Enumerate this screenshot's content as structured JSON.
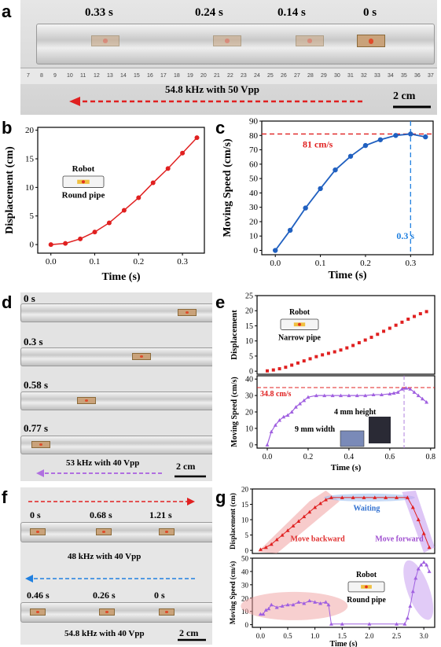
{
  "panel_letters": {
    "a": "a",
    "b": "b",
    "c": "c",
    "d": "d",
    "e": "e",
    "f": "f",
    "g": "g"
  },
  "panel_a": {
    "times": [
      "0.33 s",
      "0.24 s",
      "0.14 s",
      "0 s"
    ],
    "caption": "54.8 kHz with 50 Vpp",
    "scale": "2 cm",
    "ruler_ticks": [
      "7",
      "8",
      "9",
      "10",
      "11",
      "12",
      "13",
      "14",
      "15",
      "16",
      "17",
      "18",
      "19",
      "20",
      "21",
      "22",
      "23",
      "24",
      "25",
      "26",
      "27",
      "28",
      "29",
      "30",
      "31",
      "32",
      "33",
      "34",
      "35",
      "36",
      "37"
    ],
    "arrow_color": "#e02020"
  },
  "panel_d": {
    "times": [
      "0 s",
      "0.3 s",
      "0.58 s",
      "0.77 s"
    ],
    "caption": "53 kHz with 40 Vpp",
    "scale": "2 cm",
    "arrow_color": "#b070e0"
  },
  "panel_f": {
    "times_top": [
      "0 s",
      "0.68 s",
      "1.21 s"
    ],
    "caption_top": "48 kHz with 40 Vpp",
    "times_bottom": [
      "0.46 s",
      "0.26 s",
      "0 s"
    ],
    "caption_bottom": "54.8 kHz with 40 Vpp",
    "scale": "2 cm",
    "arrow_top_color": "#e02020",
    "arrow_bottom_color": "#2080e0"
  },
  "chart_data": [
    {
      "id": "b",
      "type": "line",
      "xlabel": "Time (s)",
      "ylabel": "Displacement (cm)",
      "xlim": [
        -0.03,
        0.35
      ],
      "ylim": [
        -1.5,
        20.5
      ],
      "xticks": [
        0.0,
        0.1,
        0.2,
        0.3
      ],
      "xtick_labels": [
        "0.0",
        "0.1",
        "0.2",
        "0.3"
      ],
      "yticks": [
        0,
        5,
        10,
        15,
        20
      ],
      "ytick_labels": [
        "0",
        "5",
        "10",
        "15",
        "20"
      ],
      "x": [
        0.0,
        0.033,
        0.067,
        0.1,
        0.133,
        0.167,
        0.2,
        0.233,
        0.267,
        0.3,
        0.333
      ],
      "y": [
        0,
        0.2,
        1.0,
        2.2,
        3.8,
        6.0,
        8.2,
        10.8,
        13.3,
        16.0,
        18.7
      ],
      "color": "#e02020",
      "inset": {
        "label_top": "Robot",
        "label_bottom": "Round pipe"
      }
    },
    {
      "id": "c",
      "type": "line",
      "xlabel": "Time (s)",
      "ylabel": "Moving Speed (cm/s)",
      "xlim": [
        -0.03,
        0.35
      ],
      "ylim": [
        -3,
        90
      ],
      "xticks": [
        0.0,
        0.1,
        0.2,
        0.3
      ],
      "xtick_labels": [
        "0.0",
        "0.1",
        "0.2",
        "0.3"
      ],
      "yticks": [
        0,
        10,
        20,
        30,
        40,
        50,
        60,
        70,
        80,
        90
      ],
      "ytick_labels": [
        "0",
        "10",
        "20",
        "30",
        "40",
        "50",
        "60",
        "70",
        "80",
        "90"
      ],
      "x": [
        0.0,
        0.033,
        0.067,
        0.1,
        0.133,
        0.167,
        0.2,
        0.233,
        0.267,
        0.3,
        0.333
      ],
      "y": [
        0,
        14,
        29.5,
        43,
        56,
        65.5,
        73,
        77,
        80,
        81,
        79
      ],
      "color": "#2060c0",
      "hline": {
        "y": 81,
        "label": "81 cm/s",
        "color": "#e02020"
      },
      "vline": {
        "x": 0.3,
        "label": "0.3 s",
        "color": "#2080e0"
      }
    },
    {
      "id": "e_top",
      "type": "scatter",
      "ylabel": "Displacement",
      "xlim": [
        -0.05,
        0.82
      ],
      "ylim": [
        -1,
        25
      ],
      "yticks": [
        0,
        5,
        10,
        15,
        20,
        25
      ],
      "ytick_labels": [
        "0",
        "5",
        "10",
        "15",
        "20",
        "25"
      ],
      "x": [
        0.0,
        0.03,
        0.06,
        0.09,
        0.12,
        0.15,
        0.18,
        0.21,
        0.24,
        0.27,
        0.3,
        0.33,
        0.36,
        0.39,
        0.42,
        0.45,
        0.48,
        0.51,
        0.54,
        0.57,
        0.6,
        0.63,
        0.66,
        0.69,
        0.72,
        0.75,
        0.78
      ],
      "y": [
        0.1,
        0.4,
        0.8,
        1.3,
        2.0,
        2.7,
        3.4,
        4.1,
        4.8,
        5.4,
        5.9,
        6.4,
        7.0,
        7.7,
        8.5,
        9.4,
        10.3,
        11.2,
        12.2,
        13.2,
        14.2,
        15.2,
        16.2,
        17.2,
        18.1,
        19.0,
        19.7
      ],
      "color": "#e02020",
      "inset": {
        "label_top": "Robot",
        "label_bottom": "Narrow pipe"
      }
    },
    {
      "id": "e_bottom",
      "type": "line",
      "xlabel": "Time (s)",
      "ylabel": "Moving Speed (cm/s)",
      "xlim": [
        -0.05,
        0.82
      ],
      "ylim": [
        -2,
        42
      ],
      "xticks": [
        0.0,
        0.2,
        0.4,
        0.6,
        0.8
      ],
      "xtick_labels": [
        "0.0",
        "0.2",
        "0.4",
        "0.6",
        "0.8"
      ],
      "yticks": [
        0,
        10,
        20,
        30,
        40
      ],
      "ytick_labels": [
        "0",
        "10",
        "20",
        "30",
        "40"
      ],
      "x": [
        0.0,
        0.02,
        0.04,
        0.06,
        0.08,
        0.1,
        0.12,
        0.14,
        0.16,
        0.18,
        0.2,
        0.24,
        0.28,
        0.32,
        0.36,
        0.4,
        0.44,
        0.48,
        0.52,
        0.56,
        0.6,
        0.62,
        0.64,
        0.66,
        0.68,
        0.7,
        0.72,
        0.74,
        0.76,
        0.78
      ],
      "y": [
        0,
        8,
        12,
        15,
        17,
        18,
        20,
        23,
        25,
        27,
        29,
        30,
        30,
        30,
        30,
        30,
        30,
        30,
        30.5,
        30.5,
        31,
        31.5,
        32,
        34,
        34.5,
        34,
        32,
        30,
        28,
        26
      ],
      "color": "#a060e0",
      "hline": {
        "y": 34.8,
        "label": "34.8 cm/s",
        "color": "#e02020"
      },
      "vline": {
        "x": 0.67,
        "color": "#b080e0"
      },
      "inset": {
        "label_height": "4 mm height",
        "label_width": "9 mm width"
      }
    },
    {
      "id": "g_top",
      "type": "line",
      "ylabel": "Displacement (cm)",
      "xlim": [
        -0.15,
        3.2
      ],
      "ylim": [
        -1,
        20
      ],
      "yticks": [
        0,
        5,
        10,
        15,
        20
      ],
      "ytick_labels": [
        "0",
        "5",
        "10",
        "15",
        "20"
      ],
      "x": [
        0.0,
        0.1,
        0.2,
        0.3,
        0.4,
        0.5,
        0.6,
        0.7,
        0.8,
        0.9,
        1.0,
        1.1,
        1.2,
        1.3,
        1.5,
        1.7,
        1.9,
        2.1,
        2.3,
        2.5,
        2.7,
        2.8,
        2.9,
        3.0,
        3.1
      ],
      "y": [
        0.3,
        1,
        2,
        3.5,
        5,
        6.5,
        8,
        9.5,
        11,
        12.5,
        14,
        15.3,
        16.5,
        17.2,
        17.2,
        17.2,
        17.2,
        17.2,
        17.2,
        17.2,
        17.2,
        14,
        10,
        5.5,
        1
      ],
      "color": "#e02020",
      "labels": {
        "waiting": "Waiting",
        "backward": "Move backward",
        "forward": "Move forward"
      }
    },
    {
      "id": "g_bottom",
      "type": "line",
      "xlabel": "Time (s)",
      "ylabel": "Moving Speed (cm/s)",
      "xlim": [
        -0.15,
        3.2
      ],
      "ylim": [
        -2,
        50
      ],
      "xticks": [
        0.0,
        0.5,
        1.0,
        1.5,
        2.0,
        2.5,
        3.0
      ],
      "xtick_labels": [
        "0.0",
        "0.5",
        "1.0",
        "1.5",
        "2.0",
        "2.5",
        "3.0"
      ],
      "yticks": [
        0,
        10,
        20,
        30,
        40,
        50
      ],
      "ytick_labels": [
        "0",
        "10",
        "20",
        "30",
        "40",
        "50"
      ],
      "x": [
        0.0,
        0.05,
        0.1,
        0.15,
        0.2,
        0.3,
        0.4,
        0.5,
        0.6,
        0.7,
        0.8,
        0.9,
        1.0,
        1.1,
        1.2,
        1.25,
        1.3,
        1.5,
        2.0,
        2.5,
        2.65,
        2.7,
        2.75,
        2.8,
        2.85,
        2.9,
        2.95,
        3.0,
        3.05,
        3.1
      ],
      "y": [
        8,
        8,
        11,
        12,
        15,
        13,
        14,
        15,
        15,
        17,
        16,
        18,
        17,
        16,
        17,
        15,
        0.5,
        0.5,
        0.5,
        0.5,
        0.5,
        5,
        14,
        25,
        35,
        42,
        45,
        47,
        45,
        40
      ],
      "color": "#a060e0",
      "inset": {
        "label_top": "Robot",
        "label_bottom": "Round pipe"
      }
    }
  ]
}
